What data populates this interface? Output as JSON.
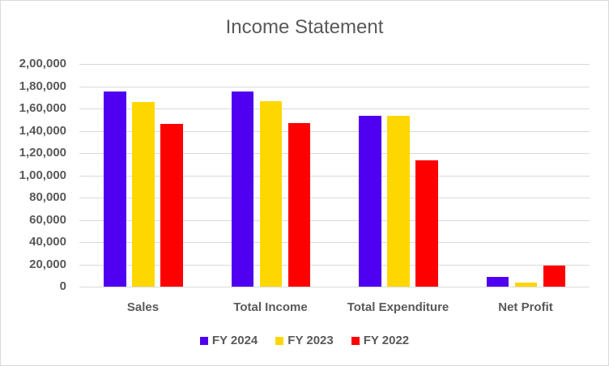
{
  "chart_data": {
    "type": "bar",
    "title": "Income Statement",
    "xlabel": "",
    "ylabel": "",
    "categories": [
      "Sales",
      "Total Income",
      "Total Expenditure",
      "Net Profit"
    ],
    "series": [
      {
        "name": "FY 2024",
        "color": "#5000F0",
        "values": [
          175500,
          175500,
          153700,
          8400
        ]
      },
      {
        "name": "FY 2023",
        "color": "#FFD700",
        "values": [
          165800,
          166800,
          153700,
          3800
        ]
      },
      {
        "name": "FY 2022",
        "color": "#FF0000",
        "values": [
          146200,
          147200,
          113800,
          19100
        ]
      }
    ],
    "ylim": [
      0,
      200000
    ],
    "yticks": [
      "0",
      "20,000",
      "40,000",
      "60,000",
      "80,000",
      "1,00,000",
      "1,20,000",
      "1,40,000",
      "1,60,000",
      "1,80,000",
      "2,00,000"
    ],
    "grid": true,
    "legend_position": "bottom"
  }
}
